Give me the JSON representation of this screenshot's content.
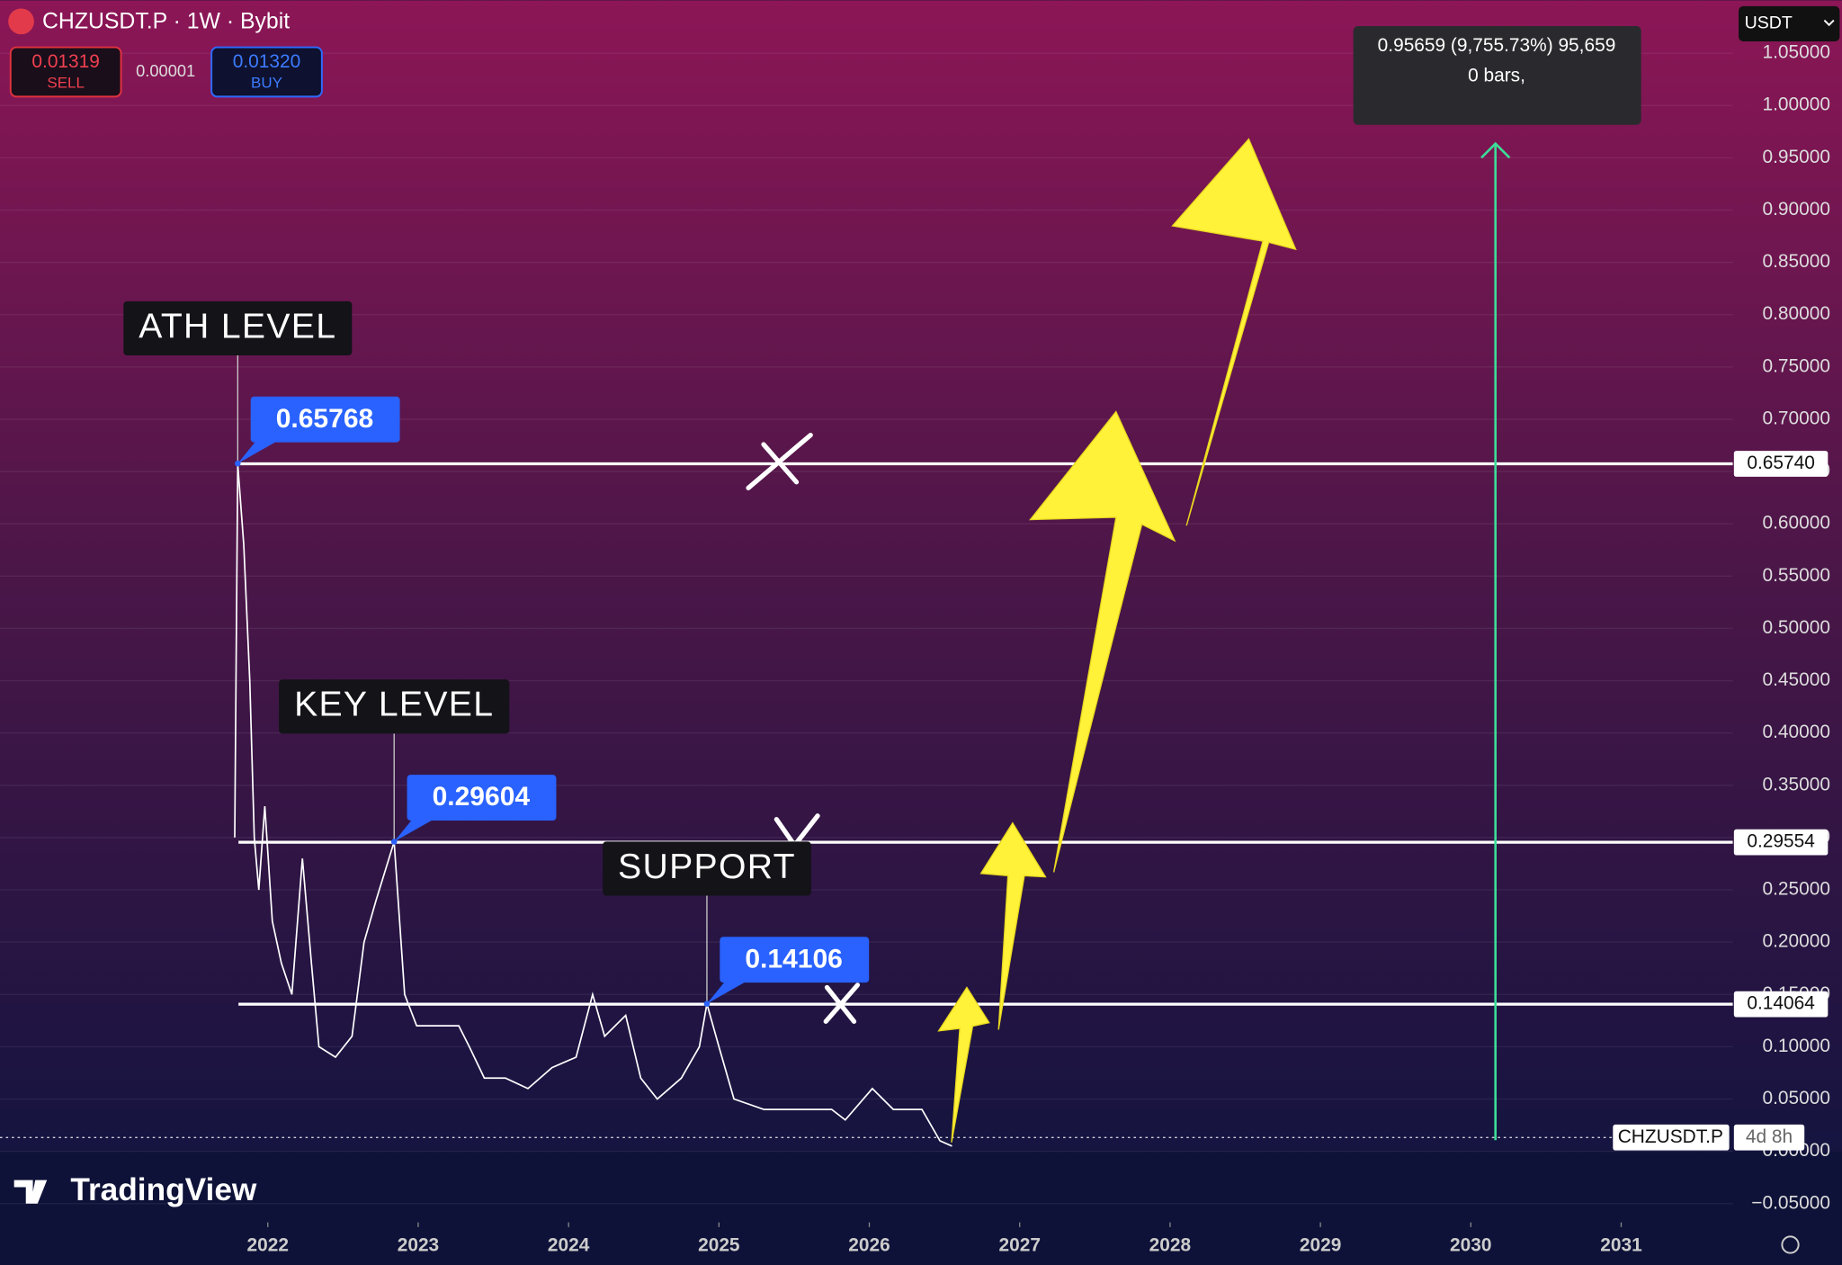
{
  "header": {
    "symbol": "CHZUSDT.P · 1W · Bybit",
    "sell_price": "0.01319",
    "sell_label": "SELL",
    "spread": "0.00001",
    "buy_price": "0.01320",
    "buy_label": "BUY",
    "currency": "USDT"
  },
  "measure_tooltip": {
    "line1": "0.95659 (9,755.73%) 95,659",
    "line2": "0 bars,"
  },
  "watermark": "TradingView",
  "chart_data": {
    "type": "line",
    "color": "#ffffff",
    "x": [
      2021.78,
      2021.8,
      2021.84,
      2021.88,
      2021.91,
      2021.94,
      2021.98,
      2022.03,
      2022.09,
      2022.16,
      2022.23,
      2022.29,
      2022.34,
      2022.45,
      2022.56,
      2022.64,
      2022.72,
      2022.84,
      2022.91,
      2022.99,
      2023.11,
      2023.27,
      2023.34,
      2023.44,
      2023.58,
      2023.73,
      2023.89,
      2024.05,
      2024.16,
      2024.24,
      2024.38,
      2024.48,
      2024.59,
      2024.75,
      2024.87,
      2024.92,
      2025.0,
      2025.1,
      2025.3,
      2025.53,
      2025.75,
      2025.84,
      2026.02,
      2026.16,
      2026.35,
      2026.47,
      2026.55
    ],
    "values": [
      0.3,
      0.657,
      0.58,
      0.45,
      0.3,
      0.25,
      0.33,
      0.22,
      0.18,
      0.15,
      0.28,
      0.18,
      0.1,
      0.09,
      0.11,
      0.2,
      0.24,
      0.296,
      0.15,
      0.12,
      0.12,
      0.12,
      0.1,
      0.07,
      0.07,
      0.06,
      0.08,
      0.09,
      0.15,
      0.11,
      0.13,
      0.07,
      0.05,
      0.07,
      0.1,
      0.141,
      0.1,
      0.05,
      0.04,
      0.04,
      0.04,
      0.03,
      0.06,
      0.04,
      0.04,
      0.01,
      0.005
    ],
    "xlim": [
      2020.219,
      2031.742
    ],
    "ylim": [
      -0.068,
      1.1006
    ],
    "xticks": [
      2022,
      2023,
      2024,
      2025,
      2026,
      2027,
      2028,
      2029,
      2030,
      2031
    ],
    "yticks": [
      {
        "value": -0.05,
        "label": "−0.05000"
      },
      {
        "value": 0,
        "label": "0.00000"
      },
      {
        "value": 0.05,
        "label": "0.05000"
      },
      {
        "value": 0.1,
        "label": "0.10000"
      },
      {
        "value": 0.15,
        "label": "0.15000"
      },
      {
        "value": 0.2,
        "label": "0.20000"
      },
      {
        "value": 0.25,
        "label": "0.25000"
      },
      {
        "value": 0.3,
        "label": "0.30000"
      },
      {
        "value": 0.35,
        "label": "0.35000"
      },
      {
        "value": 0.4,
        "label": "0.40000"
      },
      {
        "value": 0.45,
        "label": "0.45000"
      },
      {
        "value": 0.5,
        "label": "0.50000"
      },
      {
        "value": 0.55,
        "label": "0.55000"
      },
      {
        "value": 0.6,
        "label": "0.60000"
      },
      {
        "value": 0.65,
        "label": "0.65000"
      },
      {
        "value": 0.7,
        "label": "0.70000"
      },
      {
        "value": 0.75,
        "label": "0.75000"
      },
      {
        "value": 0.8,
        "label": "0.80000"
      },
      {
        "value": 0.85,
        "label": "0.85000"
      },
      {
        "value": 0.9,
        "label": "0.90000"
      },
      {
        "value": 0.95,
        "label": "0.95000"
      },
      {
        "value": 1,
        "label": "1.00000"
      },
      {
        "value": 1.05,
        "label": "1.05000"
      }
    ],
    "grid": true,
    "price_lines": [
      {
        "value": 0.6574,
        "label": "0.65740"
      },
      {
        "value": 0.29554,
        "label": "0.29554"
      },
      {
        "value": 0.14064,
        "label": "0.14064"
      }
    ],
    "annotations": [
      {
        "text": "ATH LEVEL",
        "x": 2021.8,
        "value": 0.65768
      },
      {
        "text": "KEY LEVEL",
        "x": 2022.84,
        "value": 0.29604
      },
      {
        "text": "SUPPORT",
        "x": 2024.92,
        "value": 0.14106
      }
    ],
    "last_price": 0.01319,
    "last_price_label": "CHZUSDT.P",
    "countdown": "4d 8h"
  }
}
